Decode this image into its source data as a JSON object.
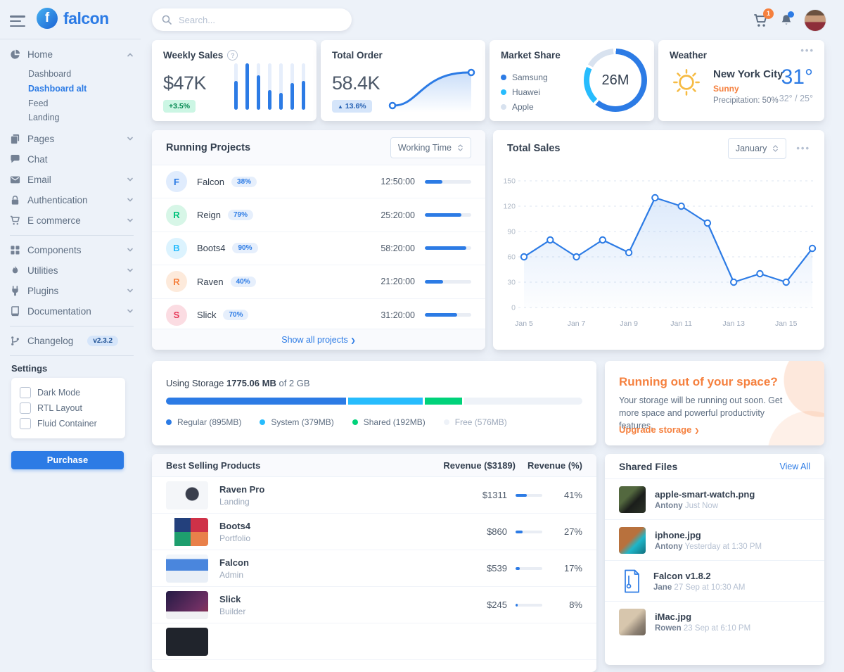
{
  "app": {
    "logo_text": "falcon"
  },
  "topbar": {
    "search_placeholder": "Search...",
    "cart_badge": "1"
  },
  "sidebar": {
    "nav": {
      "home": "Home",
      "dashboard": "Dashboard",
      "dashboard_alt": "Dashboard alt",
      "feed": "Feed",
      "landing": "Landing",
      "pages": "Pages",
      "chat": "Chat",
      "email": "Email",
      "authentication": "Authentication",
      "ecommerce": "E commerce",
      "components": "Components",
      "utilities": "Utilities",
      "plugins": "Plugins",
      "documentation": "Documentation",
      "changelog": "Changelog",
      "version_badge": "v2.3.2"
    },
    "settings": {
      "title": "Settings",
      "options": [
        "Dark Mode",
        "RTL Layout",
        "Fluid Container"
      ],
      "purchase_label": "Purchase"
    }
  },
  "cards": {
    "weekly_sales": {
      "title": "Weekly Sales",
      "value": "$47K",
      "badge": "+3.5%",
      "bars": [
        62,
        100,
        75,
        42,
        36,
        58,
        62
      ]
    },
    "total_order": {
      "title": "Total Order",
      "value": "58.4K",
      "badge_caret": "▲",
      "badge": "13.6%"
    },
    "market_share": {
      "title": "Market Share",
      "center": "26M",
      "legend": [
        {
          "label": "Samsung",
          "color": "#2c7be5",
          "value": 62
        },
        {
          "label": "Huawei",
          "color": "#27bcfd",
          "value": 21
        },
        {
          "label": "Apple",
          "color": "#d8e2ef",
          "value": 17
        }
      ]
    },
    "weather": {
      "title": "Weather",
      "city": "New York City",
      "condition": "Sunny",
      "precipitation": "Precipitation: 50%",
      "temp": "31°",
      "range": "32° / 25°"
    }
  },
  "projects": {
    "title": "Running Projects",
    "filter": "Working Time",
    "footer": "Show all projects",
    "footer_chevron": "❯",
    "rows": [
      {
        "letter": "F",
        "name": "Falcon",
        "badge": "38%",
        "time": "12:50:00",
        "progress": 38
      },
      {
        "letter": "R",
        "name": "Reign",
        "badge": "79%",
        "time": "25:20:00",
        "progress": 79
      },
      {
        "letter": "B",
        "name": "Boots4",
        "badge": "90%",
        "time": "58:20:00",
        "progress": 90
      },
      {
        "letter": "R",
        "name": "Raven",
        "badge": "40%",
        "time": "21:20:00",
        "progress": 40
      },
      {
        "letter": "S",
        "name": "Slick",
        "badge": "70%",
        "time": "31:20:00",
        "progress": 70
      }
    ]
  },
  "total_sales": {
    "title": "Total Sales",
    "filter": "January",
    "values": [
      60,
      80,
      60,
      80,
      65,
      130,
      120,
      100,
      30,
      40,
      30,
      70
    ],
    "x_labels": [
      "Jan 5",
      "",
      "Jan 7",
      "",
      "Jan 9",
      "",
      "Jan 11",
      "",
      "Jan 13",
      "",
      "Jan 15",
      ""
    ],
    "y_ticks": [
      150,
      120,
      90,
      60,
      30,
      0
    ],
    "y_max": 150
  },
  "storage": {
    "prefix": "Using Storage",
    "used": "1775.06 MB",
    "suffix": "of 2 GB",
    "segments": [
      {
        "label": "Regular (895MB)",
        "value_mb": 895,
        "pct": 43.7,
        "color": "#2c7be5"
      },
      {
        "label": "System (379MB)",
        "value_mb": 379,
        "pct": 18.5,
        "color": "#27bcfd"
      },
      {
        "label": "Shared (192MB)",
        "value_mb": 192,
        "pct": 9.4,
        "color": "#00d27a"
      },
      {
        "label": "Free (576MB)",
        "value_mb": 576,
        "pct": 28.4,
        "color": "#eef2f8"
      }
    ]
  },
  "space": {
    "title": "Running out of your space?",
    "body": "Your storage will be running out soon. Get more space and powerful productivity features.",
    "link": "Upgrade storage",
    "link_chevron": "❯"
  },
  "products": {
    "title": "Best Selling Products",
    "col_revenue": "Revenue ($3189)",
    "col_pct": "Revenue (%)",
    "rows": [
      {
        "name": "Raven Pro",
        "category": "Landing",
        "revenue": "$1311",
        "pct": 41,
        "pct_label": "41%"
      },
      {
        "name": "Boots4",
        "category": "Portfolio",
        "revenue": "$860",
        "pct": 27,
        "pct_label": "27%"
      },
      {
        "name": "Falcon",
        "category": "Admin",
        "revenue": "$539",
        "pct": 17,
        "pct_label": "17%"
      },
      {
        "name": "Slick",
        "category": "Builder",
        "revenue": "$245",
        "pct": 8,
        "pct_label": "8%"
      },
      {
        "name": "",
        "category": "",
        "revenue": "",
        "pct": 0,
        "pct_label": ""
      }
    ]
  },
  "files": {
    "title": "Shared Files",
    "view_all": "View All",
    "rows": [
      {
        "name": "apple-smart-watch.png",
        "user": "Antony",
        "time": "Just Now"
      },
      {
        "name": "iphone.jpg",
        "user": "Antony",
        "time": "Yesterday at 1:30 PM"
      },
      {
        "name": "Falcon v1.8.2",
        "user": "Jane",
        "time": "27 Sep at 10:30 AM"
      },
      {
        "name": "iMac.jpg",
        "user": "Rowen",
        "time": "23 Sep at 6:10 PM"
      }
    ]
  },
  "chart_data": [
    {
      "type": "bar",
      "title": "Weekly Sales",
      "values": [
        62,
        100,
        75,
        42,
        36,
        58,
        62
      ],
      "ylim": [
        0,
        100
      ],
      "note": "unlabeled sparkline, relative heights %"
    },
    {
      "type": "line",
      "title": "Total Order",
      "values": [
        10,
        10,
        14,
        32,
        40,
        41
      ],
      "note": "unlabeled S-curve trend sparkline"
    },
    {
      "type": "pie",
      "title": "Market Share",
      "labels": [
        "Samsung",
        "Huawei",
        "Apple"
      ],
      "values": [
        62,
        21,
        17
      ],
      "center_label": "26M",
      "legend_position": "left"
    },
    {
      "type": "line",
      "title": "Total Sales",
      "x": [
        "Jan 5",
        "Jan 6",
        "Jan 7",
        "Jan 8",
        "Jan 9",
        "Jan 10",
        "Jan 11",
        "Jan 12",
        "Jan 13",
        "Jan 14",
        "Jan 15",
        "Jan 16"
      ],
      "values": [
        60,
        80,
        60,
        80,
        65,
        130,
        120,
        100,
        30,
        40,
        30,
        70
      ],
      "ylim": [
        0,
        150
      ],
      "y_ticks": [
        0,
        30,
        60,
        90,
        120,
        150
      ],
      "grid": "horizontal-dashed",
      "legend_position": "none"
    },
    {
      "type": "bar",
      "title": "Using Storage",
      "labels": [
        "Regular",
        "System",
        "Shared",
        "Free"
      ],
      "values": [
        895,
        379,
        192,
        576
      ],
      "unit": "MB",
      "total_label": "2 GB"
    }
  ]
}
